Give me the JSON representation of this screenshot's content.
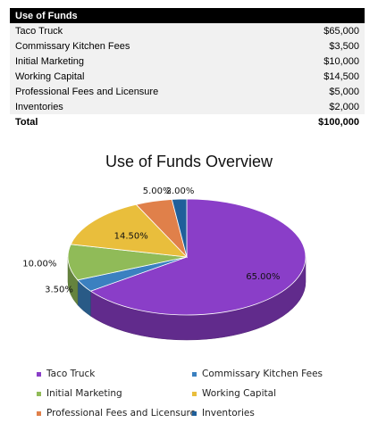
{
  "table": {
    "title": "Use of Funds",
    "rows": [
      {
        "label": "Taco Truck",
        "amount": "$65,000"
      },
      {
        "label": "Commissary Kitchen Fees",
        "amount": "$3,500"
      },
      {
        "label": "Initial Marketing",
        "amount": "$10,000"
      },
      {
        "label": "Working Capital",
        "amount": "$14,500"
      },
      {
        "label": "Professional Fees and Licensure",
        "amount": "$5,000"
      },
      {
        "label": "Inventories",
        "amount": "$2,000"
      }
    ],
    "total_label": "Total",
    "total_amount": "$100,000"
  },
  "chart_data": {
    "type": "pie",
    "title": "Use of Funds Overview",
    "categories": [
      "Taco Truck",
      "Commissary Kitchen Fees",
      "Initial Marketing",
      "Working Capital",
      "Professional Fees and Licensure",
      "Inventories"
    ],
    "values": [
      65.0,
      3.5,
      10.0,
      14.5,
      5.0,
      2.0
    ],
    "data_labels": [
      "65.00%",
      "3.50%",
      "10.00%",
      "14.50%",
      "5.00%",
      "2.00%"
    ],
    "colors": [
      "#8a3ec8",
      "#3b80c0",
      "#90bb58",
      "#e9be3c",
      "#e0804a",
      "#1f5f9a"
    ],
    "legend_position": "bottom",
    "style": "3d"
  }
}
